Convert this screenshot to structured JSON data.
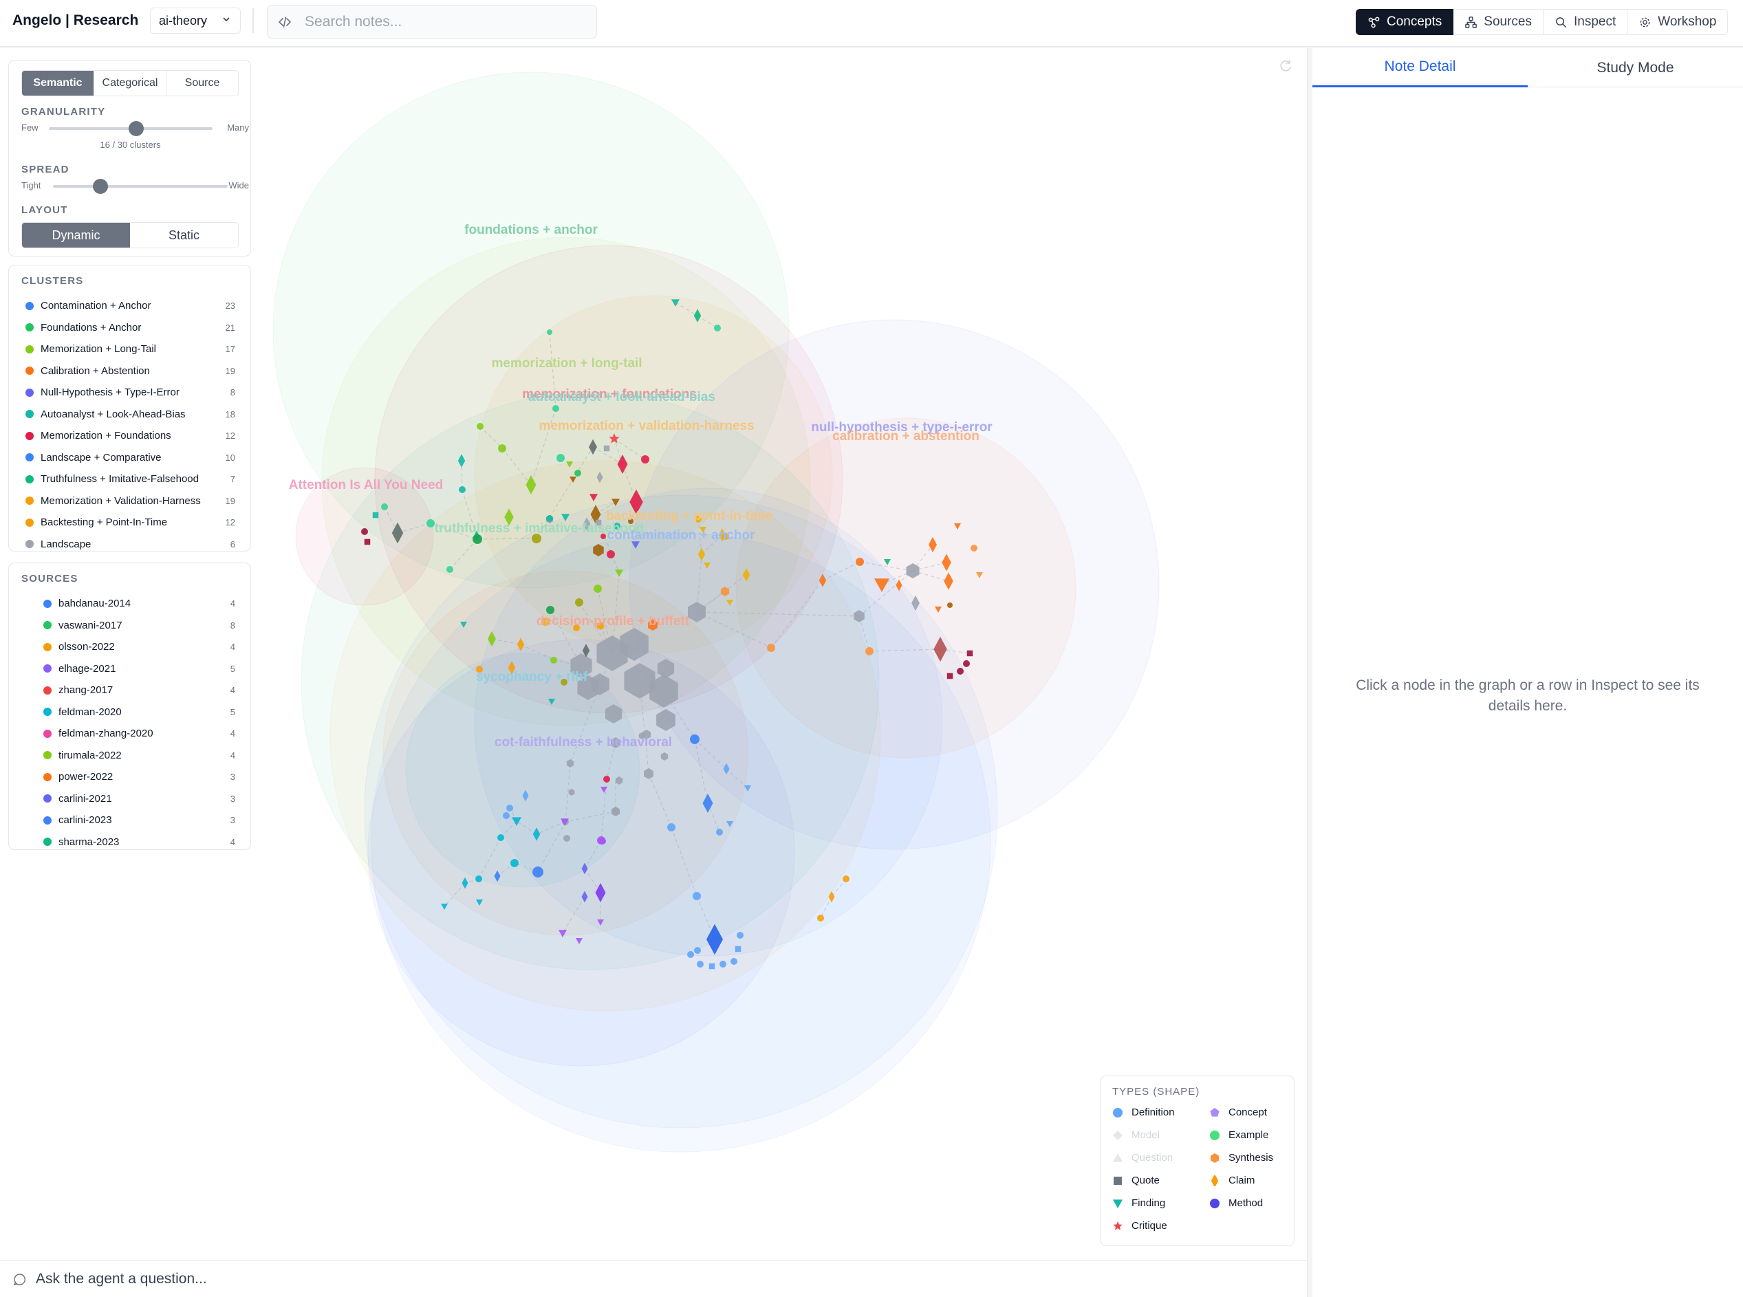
{
  "app": {
    "title": "Angelo | Research",
    "project": "ai-theory"
  },
  "search": {
    "placeholder": "Search notes..."
  },
  "nav": [
    {
      "label": "Concepts",
      "icon": "concepts-icon",
      "active": true
    },
    {
      "label": "Sources",
      "icon": "sources-icon",
      "active": false
    },
    {
      "label": "Inspect",
      "icon": "search-icon",
      "active": false
    },
    {
      "label": "Workshop",
      "icon": "gear-icon",
      "active": false
    }
  ],
  "controls": {
    "modes": [
      "Semantic",
      "Categorical",
      "Source"
    ],
    "active_mode": "Semantic",
    "granularity": {
      "label": "GRANULARITY",
      "min_label": "Few",
      "max_label": "Many",
      "value": 16,
      "max": 30,
      "count_text": "16 / 30 clusters"
    },
    "spread": {
      "label": "SPREAD",
      "min_label": "Tight",
      "max_label": "Wide",
      "value_fraction": 0.27
    },
    "layout": {
      "label": "LAYOUT",
      "options": [
        "Dynamic",
        "Static"
      ],
      "active": "Dynamic"
    }
  },
  "clusters": {
    "title": "CLUSTERS",
    "items": [
      {
        "label": "Contamination + Anchor",
        "count": "23",
        "color": "#3b82f6"
      },
      {
        "label": "Foundations + Anchor",
        "count": "21",
        "color": "#22c55e"
      },
      {
        "label": "Memorization + Long-Tail",
        "count": "17",
        "color": "#84cc16"
      },
      {
        "label": "Calibration + Abstention",
        "count": "19",
        "color": "#f97316"
      },
      {
        "label": "Null-Hypothesis + Type-I-Error",
        "count": "8",
        "color": "#6366f1"
      },
      {
        "label": "Autoanalyst + Look-Ahead-Bias",
        "count": "18",
        "color": "#14b8a6"
      },
      {
        "label": "Memorization + Foundations",
        "count": "12",
        "color": "#e11d48"
      },
      {
        "label": "Landscape + Comparative",
        "count": "10",
        "color": "#3b82f6"
      },
      {
        "label": "Truthfulness + Imitative-Falsehood",
        "count": "7",
        "color": "#10b981"
      },
      {
        "label": "Memorization + Validation-Harness",
        "count": "19",
        "color": "#f59e0b"
      },
      {
        "label": "Backtesting + Point-In-Time",
        "count": "12",
        "color": "#f59e0b"
      },
      {
        "label": "Landscape",
        "count": "6",
        "color": "#9ca3af"
      }
    ]
  },
  "sources": {
    "title": "SOURCES",
    "items": [
      {
        "label": "bahdanau-2014",
        "count": "4",
        "color": "#3b82f6"
      },
      {
        "label": "vaswani-2017",
        "count": "8",
        "color": "#22c55e"
      },
      {
        "label": "olsson-2022",
        "count": "4",
        "color": "#f59e0b"
      },
      {
        "label": "elhage-2021",
        "count": "5",
        "color": "#8b5cf6"
      },
      {
        "label": "zhang-2017",
        "count": "4",
        "color": "#ef4444"
      },
      {
        "label": "feldman-2020",
        "count": "5",
        "color": "#06b6d4"
      },
      {
        "label": "feldman-zhang-2020",
        "count": "4",
        "color": "#ec4899"
      },
      {
        "label": "tirumala-2022",
        "count": "4",
        "color": "#84cc16"
      },
      {
        "label": "power-2022",
        "count": "3",
        "color": "#f97316"
      },
      {
        "label": "carlini-2021",
        "count": "3",
        "color": "#6366f1"
      },
      {
        "label": "carlini-2023",
        "count": "3",
        "color": "#3b82f6"
      },
      {
        "label": "sharma-2023",
        "count": "4",
        "color": "#10b981"
      }
    ]
  },
  "graph": {
    "cluster_labels": [
      {
        "text": "foundations + anchor",
        "color": "#86d0ad"
      },
      {
        "text": "memorization + long-tail",
        "color": "#b9d88a"
      },
      {
        "text": "memorization + foundations",
        "color": "#e5969f"
      },
      {
        "text": "autoanalyst + look-ahead-bias",
        "color": "#8fd3cc"
      },
      {
        "text": "memorization + validation-harness",
        "color": "#f4c581"
      },
      {
        "text": "null-hypothesis + type-i-error",
        "color": "#a7a9f2"
      },
      {
        "text": "calibration + abstention",
        "color": "#f6b48a"
      },
      {
        "text": "Attention Is All You Need",
        "color": "#f0a3c4"
      },
      {
        "text": "truthfulness + imitative-falsehood",
        "color": "#9edcbc"
      },
      {
        "text": "backtesting + point-in-time",
        "color": "#f4c581"
      },
      {
        "text": "contamination + anchor",
        "color": "#9cbdf2"
      },
      {
        "text": "decision-profile + buffett",
        "color": "#f2a996"
      },
      {
        "text": "sycophancy + rlhf",
        "color": "#8fcfe0"
      },
      {
        "text": "cot-faithfulness + behavioral",
        "color": "#b3aaee"
      }
    ]
  },
  "legend": {
    "title": "TYPES (SHAPE)",
    "items": [
      {
        "label": "Definition",
        "shape": "circle",
        "color": "#60a5fa",
        "dim": false
      },
      {
        "label": "Concept",
        "shape": "pentagon",
        "color": "#a78bfa",
        "dim": false
      },
      {
        "label": "Model",
        "shape": "diamond-wide",
        "color": "#e5e7eb",
        "dim": true
      },
      {
        "label": "Example",
        "shape": "circle",
        "color": "#4ade80",
        "dim": false
      },
      {
        "label": "Question",
        "shape": "triangle-up",
        "color": "#e5e7eb",
        "dim": true
      },
      {
        "label": "Synthesis",
        "shape": "hexagon",
        "color": "#fb923c",
        "dim": false
      },
      {
        "label": "Quote",
        "shape": "square",
        "color": "#6b7280",
        "dim": false
      },
      {
        "label": "Claim",
        "shape": "diamond",
        "color": "#f59e0b",
        "dim": false
      },
      {
        "label": "Finding",
        "shape": "triangle-down",
        "color": "#14b8a6",
        "dim": false
      },
      {
        "label": "Method",
        "shape": "circle",
        "color": "#4f46e5",
        "dim": false
      },
      {
        "label": "Critique",
        "shape": "star",
        "color": "#ef4444",
        "dim": false
      }
    ]
  },
  "chat": {
    "placeholder": "Ask the agent a question..."
  },
  "right_panel": {
    "tabs": [
      "Note Detail",
      "Study Mode"
    ],
    "active_tab": "Note Detail",
    "empty_text": "Click a node in the graph or a row in Inspect to see its details here."
  }
}
